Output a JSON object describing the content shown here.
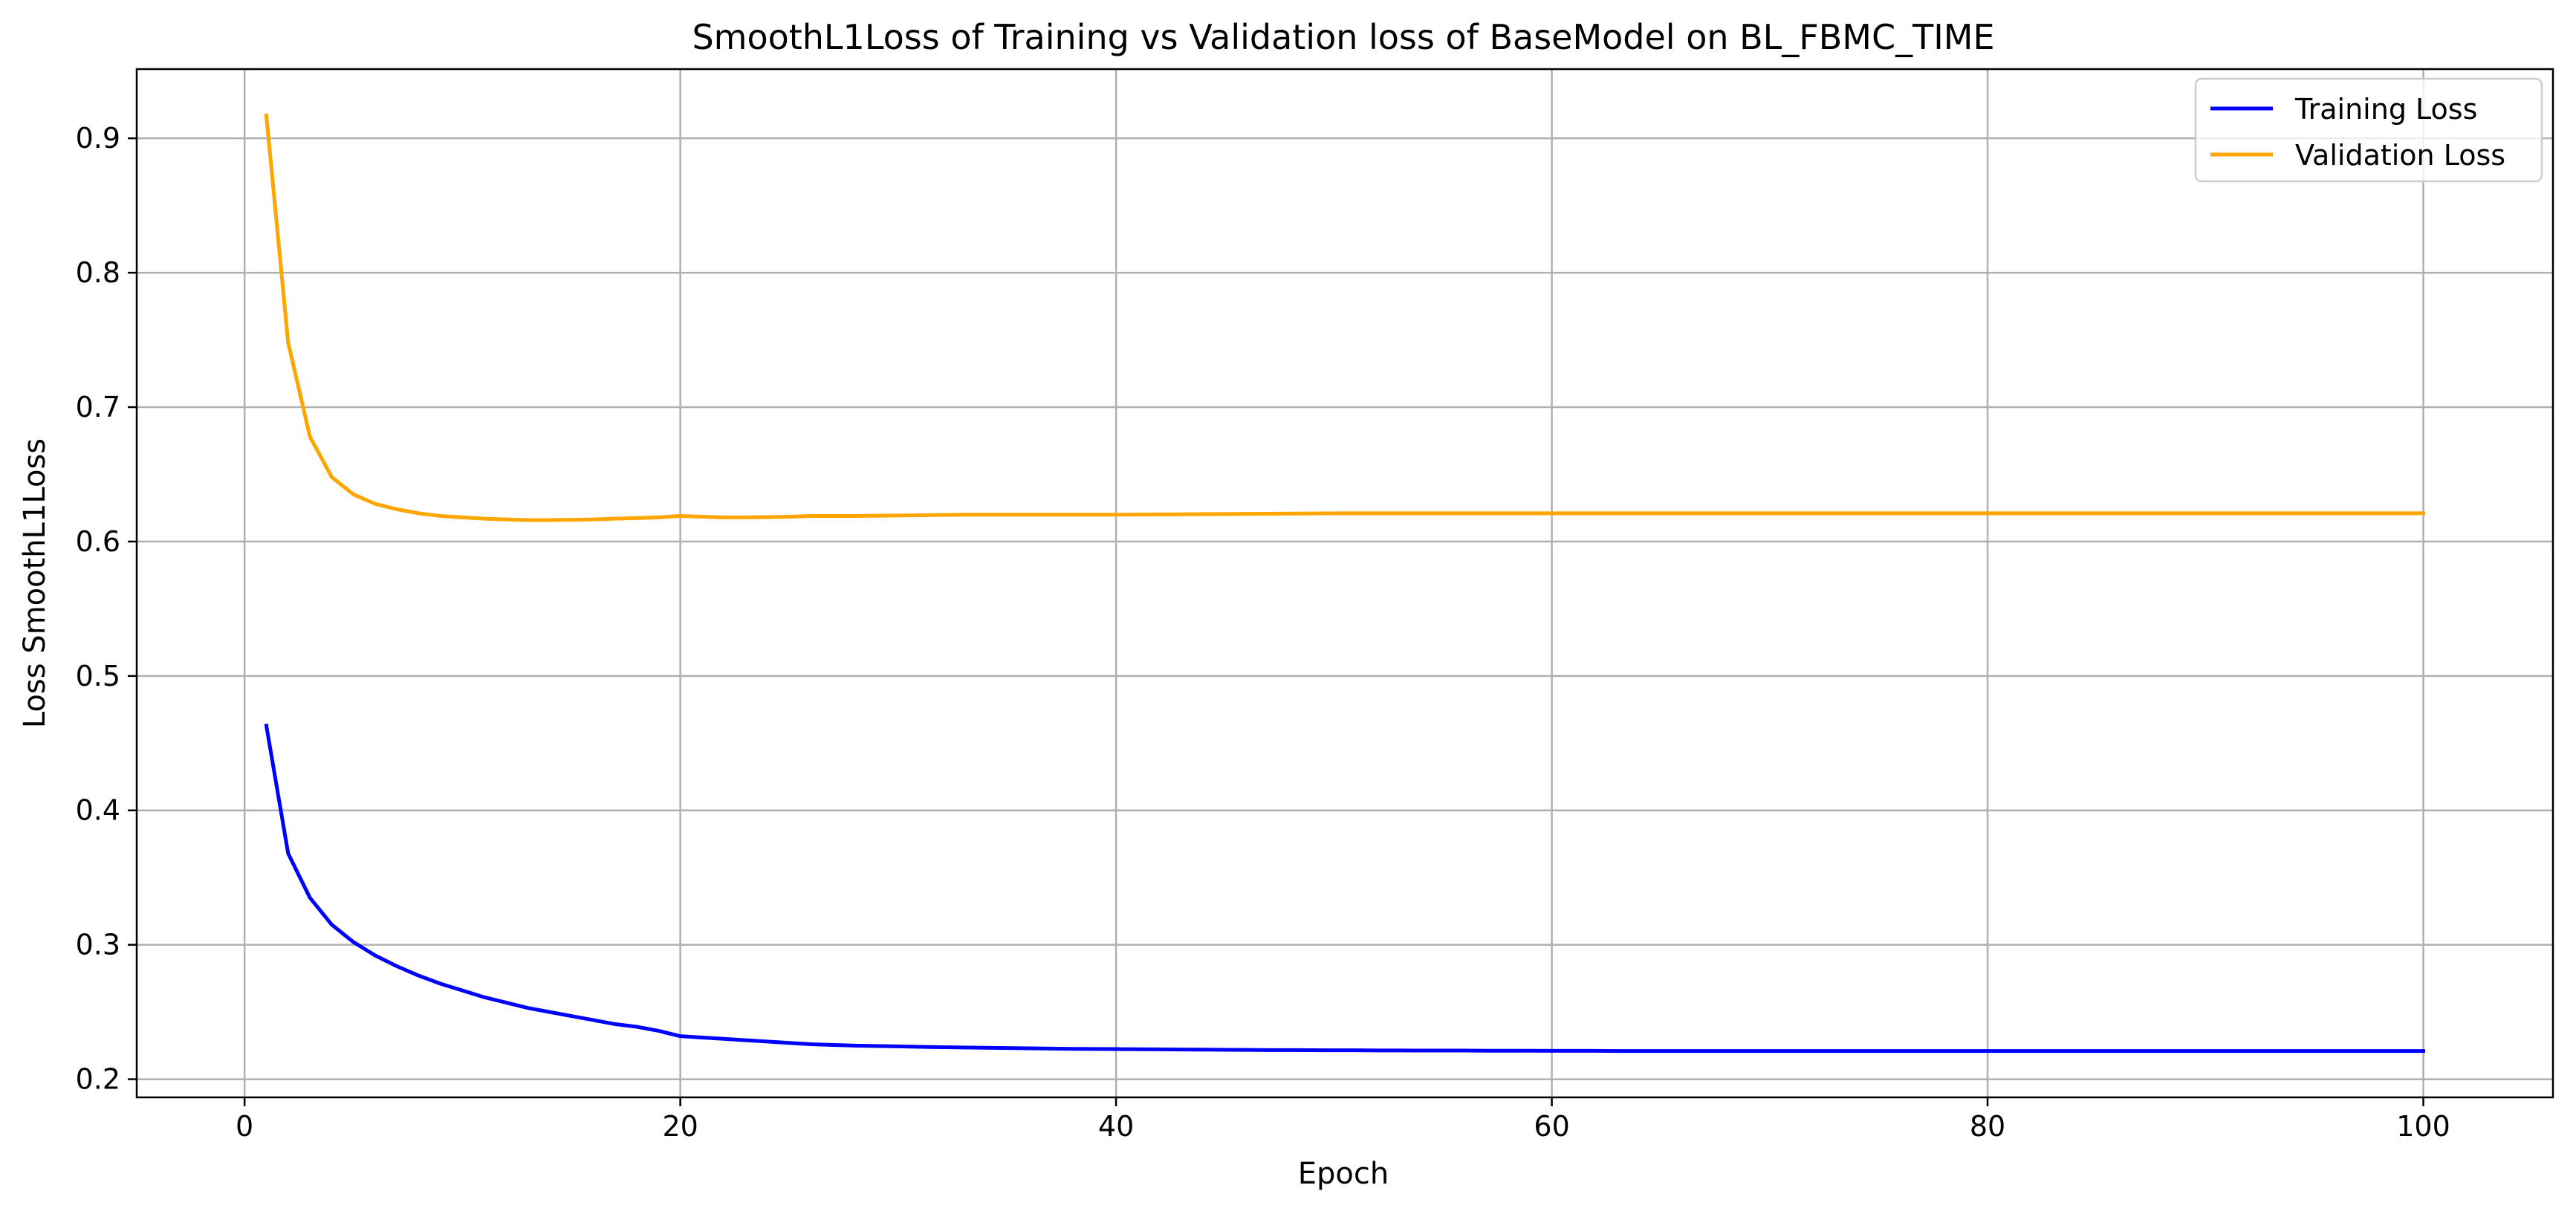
{
  "chart_data": {
    "type": "line",
    "title": "SmoothL1Loss of Training vs Validation loss of BaseModel on BL_FBMC_TIME",
    "xlabel": "Epoch",
    "ylabel": "Loss SmoothL1Loss",
    "xlim": [
      -4.95,
      105.95
    ],
    "ylim": [
      0.1865,
      0.9515
    ],
    "xticks": [
      0,
      20,
      40,
      60,
      80,
      100
    ],
    "yticks": [
      0.2,
      0.3,
      0.4,
      0.5,
      0.6,
      0.7,
      0.8,
      0.9
    ],
    "grid": true,
    "legend_position": "top-right",
    "x": [
      1,
      2,
      3,
      4,
      5,
      6,
      7,
      8,
      9,
      10,
      11,
      12,
      13,
      14,
      15,
      16,
      17,
      18,
      19,
      20,
      21,
      22,
      23,
      24,
      25,
      26,
      27,
      28,
      29,
      30,
      31,
      32,
      33,
      34,
      35,
      36,
      37,
      38,
      39,
      40,
      41,
      42,
      43,
      44,
      45,
      46,
      47,
      48,
      49,
      50,
      51,
      52,
      53,
      54,
      55,
      56,
      57,
      58,
      59,
      60,
      61,
      62,
      63,
      64,
      65,
      66,
      67,
      68,
      69,
      70,
      71,
      72,
      73,
      74,
      75,
      76,
      77,
      78,
      79,
      80,
      81,
      82,
      83,
      84,
      85,
      86,
      87,
      88,
      89,
      90,
      91,
      92,
      93,
      94,
      95,
      96,
      97,
      98,
      99,
      100
    ],
    "series": [
      {
        "name": "Training Loss",
        "color": "#0000ff",
        "values": [
          0.463,
          0.368,
          0.335,
          0.315,
          0.302,
          0.292,
          0.284,
          0.277,
          0.271,
          0.266,
          0.261,
          0.257,
          0.253,
          0.25,
          0.247,
          0.244,
          0.241,
          0.239,
          0.236,
          0.232,
          0.231,
          0.23,
          0.229,
          0.228,
          0.227,
          0.226,
          0.2255,
          0.225,
          0.2247,
          0.2244,
          0.2241,
          0.2238,
          0.2236,
          0.2234,
          0.2232,
          0.223,
          0.2228,
          0.2226,
          0.2225,
          0.2224,
          0.2223,
          0.2222,
          0.2221,
          0.222,
          0.2219,
          0.2218,
          0.2217,
          0.2217,
          0.2216,
          0.2215,
          0.2215,
          0.2214,
          0.2214,
          0.2213,
          0.2213,
          0.2213,
          0.2212,
          0.2212,
          0.2212,
          0.2211,
          0.2211,
          0.2211,
          0.221,
          0.221,
          0.221,
          0.221,
          0.221,
          0.221,
          0.221,
          0.221,
          0.221,
          0.221,
          0.221,
          0.221,
          0.221,
          0.221,
          0.221,
          0.221,
          0.221,
          0.221,
          0.221,
          0.221,
          0.221,
          0.221,
          0.221,
          0.221,
          0.221,
          0.221,
          0.221,
          0.221,
          0.221,
          0.221,
          0.221,
          0.221,
          0.221,
          0.221,
          0.221,
          0.221,
          0.221,
          0.221
        ]
      },
      {
        "name": "Validation Loss",
        "color": "#ffa500",
        "values": [
          0.917,
          0.748,
          0.678,
          0.648,
          0.635,
          0.628,
          0.624,
          0.621,
          0.619,
          0.618,
          0.617,
          0.6165,
          0.616,
          0.616,
          0.6162,
          0.6165,
          0.617,
          0.6175,
          0.618,
          0.619,
          0.6185,
          0.618,
          0.618,
          0.6182,
          0.6185,
          0.619,
          0.619,
          0.619,
          0.6192,
          0.6194,
          0.6196,
          0.6198,
          0.62,
          0.62,
          0.62,
          0.62,
          0.62,
          0.62,
          0.62,
          0.62,
          0.6201,
          0.6202,
          0.6203,
          0.6204,
          0.6205,
          0.6206,
          0.6207,
          0.6208,
          0.6209,
          0.621,
          0.621,
          0.621,
          0.621,
          0.621,
          0.621,
          0.621,
          0.621,
          0.621,
          0.621,
          0.621,
          0.621,
          0.621,
          0.621,
          0.621,
          0.621,
          0.621,
          0.621,
          0.621,
          0.621,
          0.621,
          0.621,
          0.621,
          0.621,
          0.621,
          0.621,
          0.621,
          0.621,
          0.621,
          0.621,
          0.621,
          0.621,
          0.621,
          0.621,
          0.621,
          0.621,
          0.621,
          0.621,
          0.621,
          0.621,
          0.621,
          0.621,
          0.621,
          0.621,
          0.621,
          0.621,
          0.621,
          0.621,
          0.621,
          0.621,
          0.621
        ]
      }
    ]
  }
}
